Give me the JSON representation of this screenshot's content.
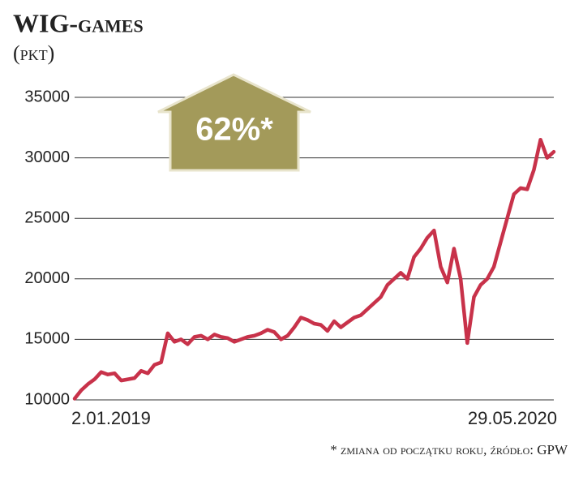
{
  "chart_data": {
    "type": "line",
    "title": "WIG-games",
    "subtitle": "(pkt)",
    "annotation": "62%*",
    "footnote": "* zmiana od początku roku, źródło: GPW",
    "categories": [
      "2.01.2019",
      null,
      null,
      null,
      null,
      null,
      null,
      null,
      null,
      null,
      null,
      null,
      null,
      null,
      null,
      null,
      null,
      null,
      null,
      null,
      null,
      null,
      null,
      null,
      null,
      null,
      null,
      null,
      null,
      null,
      null,
      null,
      null,
      null,
      null,
      null,
      null,
      null,
      null,
      null,
      null,
      null,
      null,
      null,
      null,
      null,
      null,
      null,
      null,
      null,
      null,
      null,
      null,
      null,
      null,
      null,
      null,
      null,
      null,
      null,
      null,
      null,
      null,
      null,
      null,
      null,
      null,
      null,
      null,
      null,
      null,
      null,
      "29.05.2020"
    ],
    "values": [
      10100,
      10800,
      11300,
      11700,
      12300,
      12100,
      12200,
      11600,
      11700,
      11800,
      12400,
      12200,
      12900,
      13100,
      15500,
      14800,
      15000,
      14600,
      15200,
      15300,
      15000,
      15400,
      15200,
      15100,
      14800,
      15000,
      15200,
      15300,
      15500,
      15800,
      15600,
      15000,
      15300,
      16000,
      16800,
      16600,
      16300,
      16200,
      15700,
      16500,
      16000,
      16400,
      16800,
      17000,
      17500,
      18000,
      18500,
      19500,
      20000,
      20500,
      20000,
      21800,
      22500,
      23400,
      24000,
      21000,
      19700,
      22500,
      20000,
      14700,
      18500,
      19500,
      20000,
      21000,
      23000,
      25000,
      27000,
      27500,
      27400,
      29000,
      31500,
      30000,
      30500
    ],
    "color": "#c8324a",
    "ylim": [
      10000,
      35000
    ],
    "yticks": [
      10000,
      15000,
      20000,
      25000,
      30000,
      35000
    ],
    "grid": true
  }
}
